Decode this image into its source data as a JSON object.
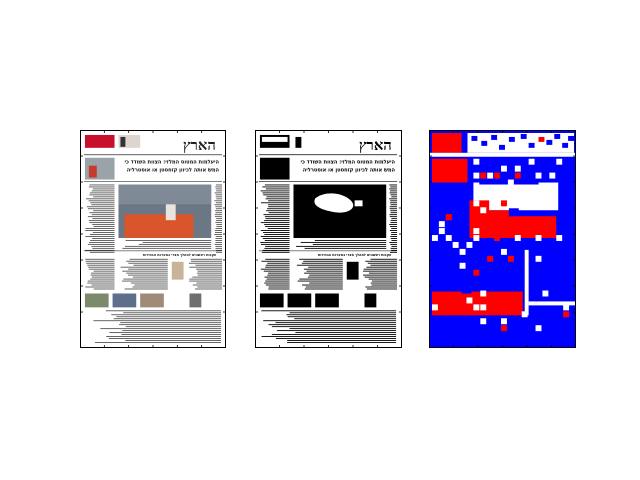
{
  "panels": [
    {
      "role": "original-color-newspaper-scan"
    },
    {
      "role": "binarized-newspaper-scan"
    },
    {
      "role": "segmentation-label-map"
    }
  ],
  "masthead_text": "הארץ",
  "headline_line1": "היעלמות המטוס המלזי: הצוות השודד כי",
  "headline_line2": "המשׂ אותה לכיוון קזחסטן או אוסטרליה",
  "section_headline": "עקבות ראשונים למהלך מצרי במערכת הבחירות",
  "colors": {
    "background": "#ffffff",
    "ink": "#000000",
    "class_background": "#0000ff",
    "class_image": "#ff0000",
    "class_text": "#ffffff",
    "masthead_red": "#c8102e",
    "photo_orange": "#d9552b",
    "photo_sky": "#6b7785"
  }
}
